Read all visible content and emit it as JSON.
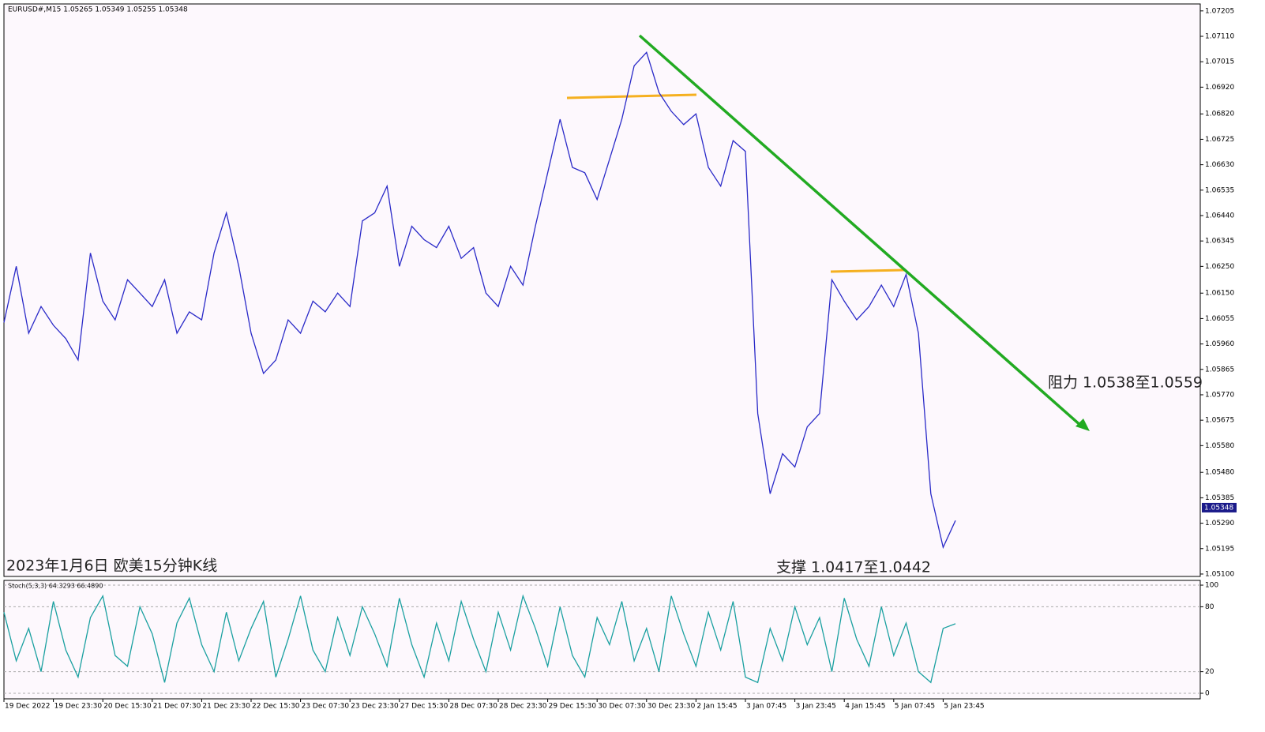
{
  "chart_data": [
    {
      "type": "line",
      "header": "EURUSD#,M15  1.05265 1.05349 1.05255 1.05348",
      "annotations": [
        "2023年1月6日 欧美15分钟K线",
        "支撑 1.0417至1.0442",
        "阻力 1.0538至1.0559"
      ],
      "categories": [
        "19 Dec 2022",
        null,
        null,
        null,
        "19 Dec 23:30",
        null,
        null,
        null,
        "20 Dec 15:30",
        null,
        null,
        null,
        "21 Dec 07:30",
        null,
        null,
        null,
        "21 Dec 23:30",
        null,
        null,
        null,
        "22 Dec 15:30",
        null,
        null,
        null,
        "23 Dec 07:30",
        null,
        null,
        null,
        "23 Dec 23:30",
        null,
        null,
        null,
        "27 Dec 15:30",
        null,
        null,
        null,
        "28 Dec 07:30",
        null,
        null,
        null,
        "28 Dec 23:30",
        null,
        null,
        null,
        "29 Dec 15:30",
        null,
        null,
        null,
        "30 Dec 07:30",
        null,
        null,
        null,
        "30 Dec 23:30",
        null,
        null,
        null,
        "2 Jan 15:45",
        null,
        null,
        null,
        "3 Jan 07:45",
        null,
        null,
        null,
        "3 Jan 23:45",
        null,
        null,
        null,
        "4 Jan 15:45",
        null,
        null,
        null,
        "5 Jan 07:45",
        null,
        null,
        null,
        "5 Jan 23:45",
        null
      ],
      "values": [
        1.0604,
        1.0625,
        1.06,
        1.061,
        1.0603,
        1.0598,
        1.059,
        1.063,
        1.0612,
        1.0605,
        1.062,
        1.0615,
        1.061,
        1.062,
        1.06,
        1.0608,
        1.0605,
        1.063,
        1.0645,
        1.0625,
        1.06,
        1.0585,
        1.059,
        1.0605,
        1.06,
        1.0612,
        1.0608,
        1.0615,
        1.061,
        1.0642,
        1.0645,
        1.0655,
        1.0625,
        1.064,
        1.0635,
        1.0632,
        1.064,
        1.0628,
        1.0632,
        1.0615,
        1.061,
        1.0625,
        1.0618,
        1.064,
        1.066,
        1.068,
        1.0662,
        1.066,
        1.065,
        1.0665,
        1.068,
        1.07,
        1.0705,
        1.069,
        1.0683,
        1.0678,
        1.0682,
        1.0662,
        1.0655,
        1.0672,
        1.0668,
        1.057,
        1.054,
        1.0555,
        1.055,
        1.0565,
        1.057,
        1.062,
        1.0612,
        1.0605,
        1.061,
        1.0618,
        1.061,
        1.0622,
        1.06,
        1.054,
        1.052,
        1.053
      ],
      "color": "#2a2ac8",
      "last_price": 1.05348,
      "ylim": [
        1.05091,
        1.07231
      ],
      "yticks": [
        {
          "value": 1.07205,
          "label": "1.07205"
        },
        {
          "value": 1.0711,
          "label": "1.07110"
        },
        {
          "value": 1.07015,
          "label": "1.07015"
        },
        {
          "value": 1.0692,
          "label": "1.06920"
        },
        {
          "value": 1.0682,
          "label": "1.06820"
        },
        {
          "value": 1.06725,
          "label": "1.06725"
        },
        {
          "value": 1.0663,
          "label": "1.06630"
        },
        {
          "value": 1.06535,
          "label": "1.06535"
        },
        {
          "value": 1.0644,
          "label": "1.06440"
        },
        {
          "value": 1.06345,
          "label": "1.06345"
        },
        {
          "value": 1.0625,
          "label": "1.06250"
        },
        {
          "value": 1.0615,
          "label": "1.06150"
        },
        {
          "value": 1.06055,
          "label": "1.06055"
        },
        {
          "value": 1.0596,
          "label": "1.05960"
        },
        {
          "value": 1.05865,
          "label": "1.05865"
        },
        {
          "value": 1.0577,
          "label": "1.05770"
        },
        {
          "value": 1.05675,
          "label": "1.05675"
        },
        {
          "value": 1.0558,
          "label": "1.05580"
        },
        {
          "value": 1.0548,
          "label": "1.05480"
        },
        {
          "value": 1.05385,
          "label": "1.05385"
        },
        {
          "value": 1.0529,
          "label": "1.05290"
        },
        {
          "value": 1.05195,
          "label": "1.05195"
        },
        {
          "value": 1.051,
          "label": "1.05100"
        }
      ]
    },
    {
      "type": "line",
      "title": "Stoch(5,3,3) 64.3293 66.4890",
      "values": [
        75,
        30,
        60,
        20,
        85,
        40,
        15,
        70,
        90,
        35,
        25,
        80,
        55,
        10,
        65,
        88,
        45,
        20,
        75,
        30,
        60,
        85,
        15,
        50,
        90,
        40,
        20,
        70,
        35,
        80,
        55,
        25,
        88,
        45,
        15,
        65,
        30,
        85,
        50,
        20,
        75,
        40,
        90,
        60,
        25,
        80,
        35,
        15,
        70,
        45,
        85,
        30,
        60,
        20,
        90,
        55,
        25,
        75,
        40,
        85,
        15,
        10,
        60,
        30,
        80,
        45,
        70,
        20,
        88,
        50,
        25,
        80,
        35,
        65,
        20,
        10,
        60,
        64.3
      ],
      "color": "#1aa0a0",
      "ylim": [
        -5.1,
        104.4
      ],
      "yticks": [
        100,
        80,
        20,
        0
      ],
      "grid": true
    }
  ]
}
